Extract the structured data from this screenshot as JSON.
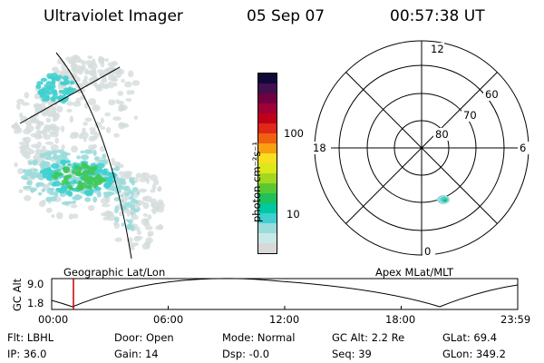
{
  "header": {
    "instrument": "Ultraviolet Imager",
    "date": "05 Sep 07",
    "time": "00:57:38 UT"
  },
  "geo_panel": {
    "label": "Geographic Lat/Lon"
  },
  "colorbar": {
    "unit_label": "photon cm⁻²s⁻¹",
    "tick_labels": [
      "100",
      "10"
    ],
    "colors": [
      "#d8d8d8",
      "#c8e8e8",
      "#9adcdc",
      "#3fd0cf",
      "#00c8a0",
      "#20c05a",
      "#5ac832",
      "#a4d820",
      "#dce81a",
      "#f8e020",
      "#f8a010",
      "#f06010",
      "#e02818",
      "#c00018",
      "#a00038",
      "#700040",
      "#401050",
      "#100838"
    ]
  },
  "polar_panel": {
    "label": "Apex MLat/MLT",
    "mlt_labels": [
      "12",
      "18",
      "6",
      "0"
    ],
    "lat_labels": [
      "60",
      "70",
      "80"
    ]
  },
  "altitude_strip": {
    "ylabel": "GC Alt",
    "ytick_labels": [
      "9.0",
      "1.8"
    ],
    "xtick_labels": [
      "00:00",
      "06:00",
      "12:00",
      "18:00",
      "23:59"
    ]
  },
  "footer": {
    "rows": [
      [
        "Flt: LBHL",
        "Door: Open",
        "Mode: Normal",
        "GC Alt: 2.2 Re",
        "GLat: 69.4"
      ],
      [
        "IP: 36.0",
        "Gain: 14",
        "Dsp: -0.0",
        "Seq: 39",
        "GLon: 349.2"
      ]
    ]
  }
}
